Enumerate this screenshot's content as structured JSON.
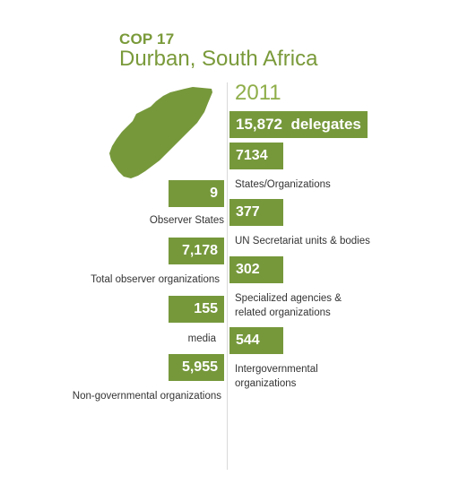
{
  "header": {
    "event": "COP 17",
    "location": "Durban, South Africa",
    "year": "2011"
  },
  "colors": {
    "accent": "#76983b",
    "heading": "#7a9a3a",
    "map": "#76983b"
  },
  "icons": {
    "map": "south-africa-kwazulu-natal-map"
  },
  "stats": {
    "delegates": {
      "value": "15,872",
      "label": "delegates"
    },
    "states": {
      "value": "7134",
      "label": "States/Organizations"
    },
    "observer_states": {
      "value": "9",
      "label": "Observer States"
    },
    "un_secretariat": {
      "value": "377",
      "label": "UN Secretariat units & bodies"
    },
    "total_observer_orgs": {
      "value": "7,178",
      "label": "Total observer organizations"
    },
    "specialized_agencies": {
      "value": "302",
      "label_line1": "Specialized agencies &",
      "label_line2": "related organizations"
    },
    "media": {
      "value": "155",
      "label": "media"
    },
    "intergovernmental": {
      "value": "544",
      "label_line1": "Intergovernmental",
      "label_line2": "organizations"
    },
    "ngos": {
      "value": "5,955",
      "label": "Non-governmental organizations"
    }
  }
}
